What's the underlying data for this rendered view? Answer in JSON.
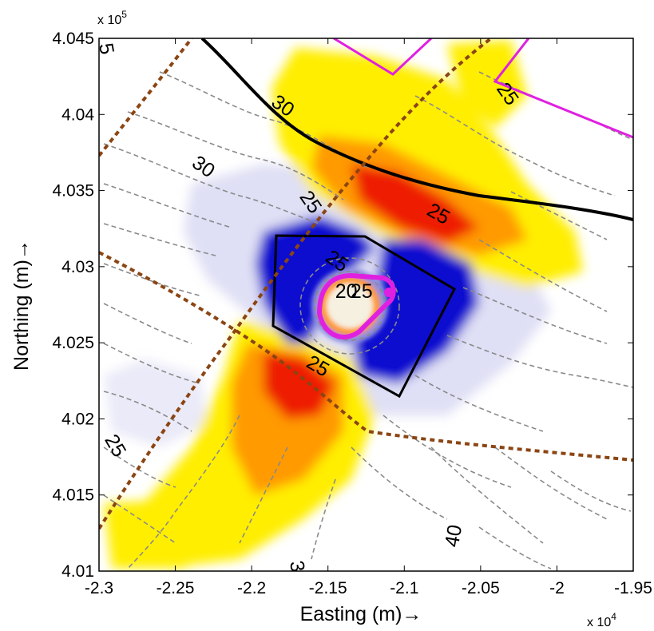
{
  "chart_data": {
    "type": "heatmap",
    "xlabel": "Easting (m)→",
    "ylabel": "Northing (m)→",
    "x_multiplier": "x 10",
    "x_multiplier_exp": "4",
    "y_multiplier": "x 10",
    "y_multiplier_exp": "5",
    "xlim": [
      -2.3,
      -1.95
    ],
    "ylim": [
      4.01,
      4.045
    ],
    "x_ticks": [
      "-2.3",
      "-2.25",
      "-2.2",
      "-2.15",
      "-2.1",
      "-2.05",
      "-2",
      "-1.95"
    ],
    "y_ticks": [
      "4.01",
      "4.015",
      "4.02",
      "4.025",
      "4.03",
      "4.035",
      "4.04",
      "4.045"
    ],
    "colors": {
      "strong_positive": "#ee1a00",
      "moderate_positive": "#ff9a00",
      "weak_positive": "#ffee00",
      "strong_negative": "#0a0ad0",
      "weak_negative": "#dcdcf4",
      "contours": "#8a8a8a",
      "boundary": "#000000",
      "magenta_outline": "#e020e0",
      "brown_dashed": "#8b4513"
    },
    "contour_labels": [
      {
        "text": "30",
        "x": -2.18,
        "y": 4.0405
      },
      {
        "text": "30",
        "x": -2.232,
        "y": 4.0365
      },
      {
        "text": "25",
        "x": -2.162,
        "y": 4.0342
      },
      {
        "text": "25",
        "x": -2.078,
        "y": 4.0334
      },
      {
        "text": "25",
        "x": -2.1445,
        "y": 4.0303
      },
      {
        "text": "20",
        "x": -2.138,
        "y": 4.0283
      },
      {
        "text": "25",
        "x": -2.128,
        "y": 4.0283
      },
      {
        "text": "25",
        "x": -2.157,
        "y": 4.0234
      },
      {
        "text": "25",
        "x": -2.29,
        "y": 4.0182
      },
      {
        "text": "25",
        "x": -2.033,
        "y": 4.0413
      },
      {
        "text": "40",
        "x": -2.067,
        "y": 4.0123
      },
      {
        "text": "5",
        "x": -2.296,
        "y": 4.0443
      },
      {
        "text": "3",
        "x": -2.171,
        "y": 4.0103
      }
    ]
  }
}
